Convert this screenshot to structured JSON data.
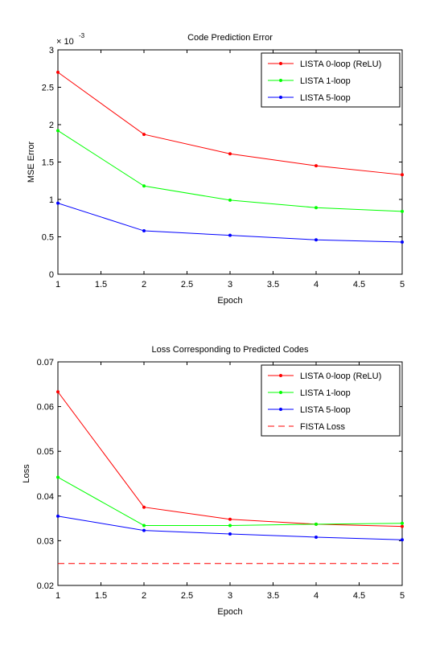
{
  "chart_data": [
    {
      "type": "line",
      "title": "Code Prediction Error",
      "xlabel": "Epoch",
      "ylabel": "MSE Error",
      "y_exponent_label": "× 10",
      "y_exponent_power": "-3",
      "xlim": [
        1,
        5
      ],
      "ylim": [
        0,
        3
      ],
      "xticks": [
        "1",
        "1.5",
        "2",
        "2.5",
        "3",
        "3.5",
        "4",
        "4.5",
        "5"
      ],
      "yticks": [
        "0",
        "0.5",
        "1",
        "1.5",
        "2",
        "2.5",
        "3"
      ],
      "grid": false,
      "legend_position": "top-right",
      "x": [
        1,
        2,
        3,
        4,
        5
      ],
      "series": [
        {
          "name": "LISTA 0-loop (ReLU)",
          "color": "#ff0000",
          "style": "solid-dot",
          "values": [
            2.7,
            1.87,
            1.61,
            1.45,
            1.33
          ]
        },
        {
          "name": "LISTA 1-loop",
          "color": "#00ff00",
          "style": "solid-dot",
          "values": [
            1.92,
            1.18,
            0.99,
            0.89,
            0.84
          ]
        },
        {
          "name": "LISTA 5-loop",
          "color": "#0000ff",
          "style": "solid-dot",
          "values": [
            0.95,
            0.58,
            0.52,
            0.46,
            0.43
          ]
        }
      ]
    },
    {
      "type": "line",
      "title": "Loss Corresponding to Predicted Codes",
      "xlabel": "Epoch",
      "ylabel": "Loss",
      "xlim": [
        1,
        5
      ],
      "ylim": [
        0.02,
        0.07
      ],
      "xticks": [
        "1",
        "1.5",
        "2",
        "2.5",
        "3",
        "3.5",
        "4",
        "4.5",
        "5"
      ],
      "yticks": [
        "0.02",
        "0.03",
        "0.04",
        "0.05",
        "0.06",
        "0.07"
      ],
      "grid": false,
      "legend_position": "top-right",
      "x": [
        1,
        2,
        3,
        4,
        5
      ],
      "series": [
        {
          "name": "LISTA 0-loop (ReLU)",
          "color": "#ff0000",
          "style": "solid-dot",
          "values": [
            0.0633,
            0.0375,
            0.0348,
            0.0337,
            0.0332
          ]
        },
        {
          "name": "LISTA 1-loop",
          "color": "#00ff00",
          "style": "solid-dot",
          "values": [
            0.0442,
            0.0334,
            0.0334,
            0.0337,
            0.0339
          ]
        },
        {
          "name": "LISTA 5-loop",
          "color": "#0000ff",
          "style": "solid-dot",
          "values": [
            0.0355,
            0.0323,
            0.0315,
            0.0308,
            0.0302
          ]
        },
        {
          "name": "FISTA Loss",
          "color": "#ff0000",
          "style": "dashed",
          "values": [
            0.0249,
            0.0249,
            0.0249,
            0.0249,
            0.0249
          ]
        }
      ]
    }
  ]
}
